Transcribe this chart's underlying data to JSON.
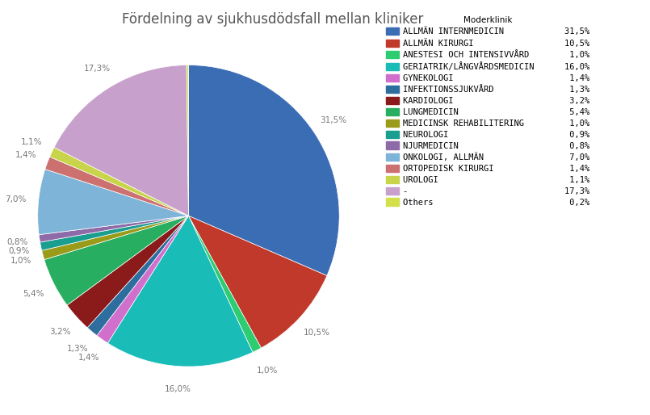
{
  "title": "Fördelning av sjukhusdödsfall mellan kliniker",
  "legend_title": "Moderklinik",
  "categories": [
    "ALLMÄN INTERNMEDICIN",
    "ALLMÄN KIRURGI",
    "ANESTESI OCH INTENSIVVÅRD",
    "GERIATRIK/LÅNGVÅRDSMEDICIN",
    "GYNEKOLOGI",
    "INFEKTIONSSJUKVÅRD",
    "KARDIOLOGI",
    "LUNGMEDICIN",
    "MEDICINSK REHABILITERING",
    "NEUROLOGI",
    "NJURMEDICIN",
    "ONKOLOGI, ALLMÄN",
    "ORTOPEDISK KIRURGI",
    "UROLOGI",
    "-",
    "Others"
  ],
  "values": [
    31.5,
    10.5,
    1.0,
    16.0,
    1.4,
    1.3,
    3.2,
    5.4,
    1.0,
    0.9,
    0.8,
    7.0,
    1.4,
    1.1,
    17.3,
    0.2
  ],
  "colors": [
    "#3B6DB5",
    "#C0392B",
    "#2ECC71",
    "#1ABCB8",
    "#D070CC",
    "#2E6E9E",
    "#8B1A1A",
    "#27AE60",
    "#9B9B1A",
    "#1A9E90",
    "#8E6BA8",
    "#7EB4D8",
    "#CC7070",
    "#C8D44A",
    "#C8A0CC",
    "#D4E04A"
  ],
  "background_color": "#ffffff",
  "title_fontsize": 12,
  "legend_fontsize": 7.5,
  "label_color": "#777777"
}
